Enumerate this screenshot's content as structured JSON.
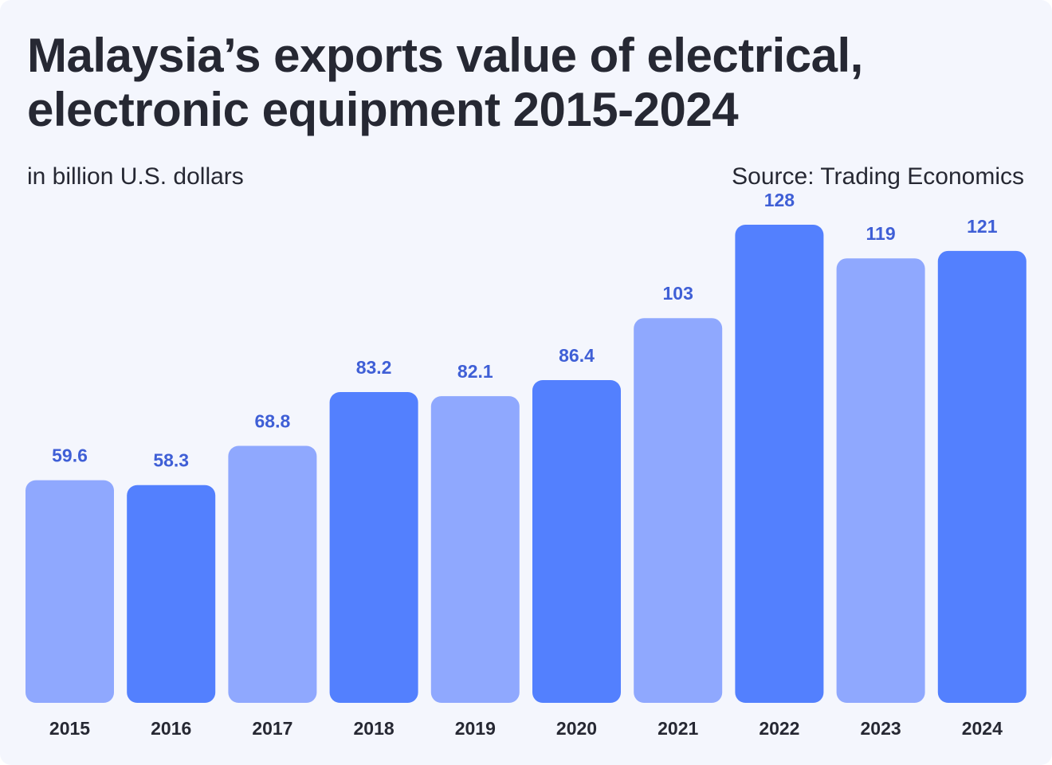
{
  "header": {
    "title_line1": "Malaysia’s exports value of electrical,",
    "title_line2": "electronic equipment 2015-2024",
    "subtitle": "in billion U.S. dollars",
    "source": "Source: Trading Economics"
  },
  "colors": {
    "background": "#f4f6fd",
    "bar_light": "#8fa8fe",
    "bar_dark": "#5380fe",
    "value_label": "#3f5fd6",
    "text": "#262833"
  },
  "chart_data": {
    "type": "bar",
    "title": "Malaysia’s exports value of electrical, electronic equipment 2015-2024",
    "subtitle": "in billion U.S. dollars",
    "categories": [
      "2015",
      "2016",
      "2017",
      "2018",
      "2019",
      "2020",
      "2021",
      "2022",
      "2023",
      "2024"
    ],
    "values": [
      59.6,
      58.3,
      68.8,
      83.2,
      82.1,
      86.4,
      103,
      128,
      119,
      121
    ],
    "value_labels": [
      "59.6",
      "58.3",
      "68.8",
      "83.2",
      "82.1",
      "86.4",
      "103",
      "128",
      "119",
      "121"
    ],
    "bar_colors": [
      "light",
      "dark",
      "light",
      "dark",
      "light",
      "dark",
      "light",
      "dark",
      "light",
      "dark"
    ],
    "xlabel": "",
    "ylabel": "",
    "ylim": [
      0,
      128
    ],
    "grid": false,
    "legend": "none"
  }
}
